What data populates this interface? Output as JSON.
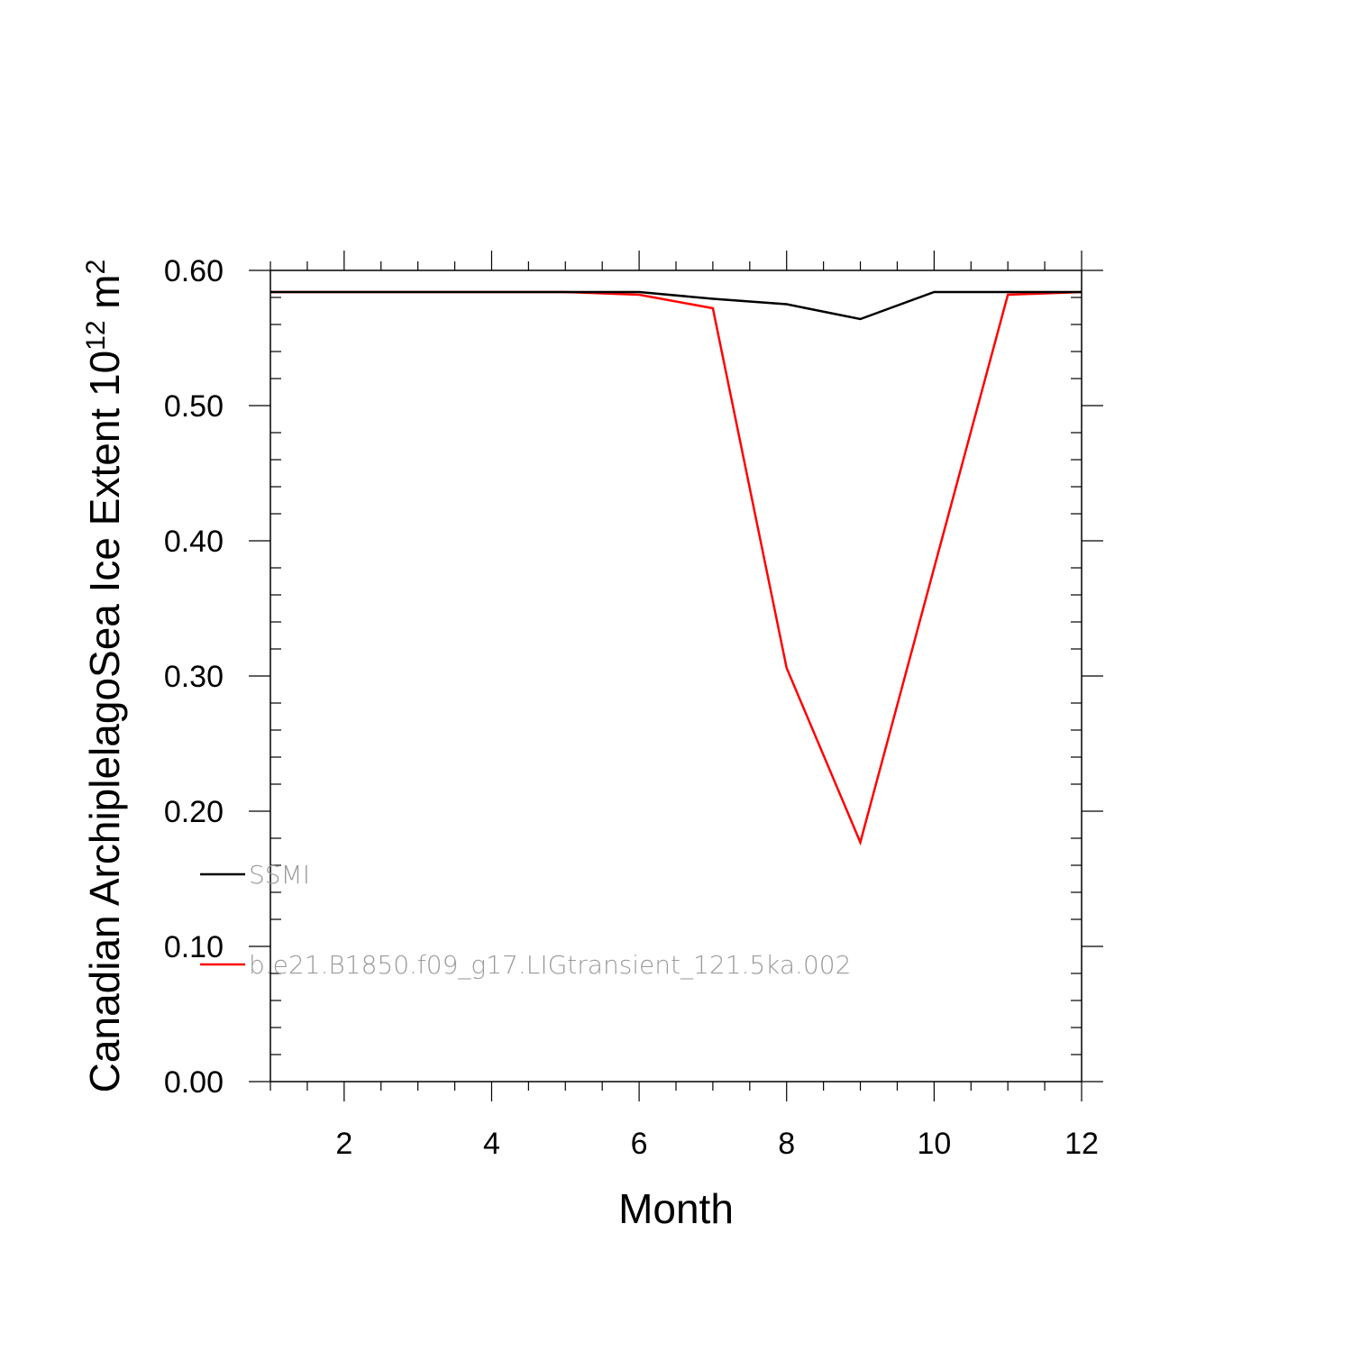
{
  "chart_data": {
    "type": "line",
    "title": "",
    "xlabel": "Month",
    "ylabel": {
      "base": "Canadian ArchiplelagoSea Ice Extent 10",
      "sup1": "12",
      "mid": " m",
      "sup2": "2"
    },
    "xlim": [
      1,
      12
    ],
    "ylim": [
      0,
      0.6
    ],
    "x_ticks": [
      2,
      4,
      6,
      8,
      10,
      12
    ],
    "y_ticks": [
      "0.00",
      "0.10",
      "0.20",
      "0.30",
      "0.40",
      "0.50",
      "0.60"
    ],
    "x": [
      1,
      2,
      3,
      4,
      5,
      6,
      7,
      8,
      9,
      10,
      11,
      12
    ],
    "series": [
      {
        "name": "SSMI",
        "color": "#000000",
        "values": [
          0.584,
          0.584,
          0.584,
          0.584,
          0.584,
          0.584,
          0.579,
          0.575,
          0.564,
          0.584,
          0.584,
          0.584
        ]
      },
      {
        "name": "b.e21.B1850.f09_g17.LIGtransient_121.5ka.002",
        "color": "#ff0000",
        "values": [
          0.584,
          0.584,
          0.584,
          0.584,
          0.584,
          0.582,
          0.572,
          0.306,
          0.177,
          0.38,
          0.582,
          0.584
        ]
      }
    ],
    "legend": {
      "placement": "lower-left"
    },
    "grid": false
  }
}
